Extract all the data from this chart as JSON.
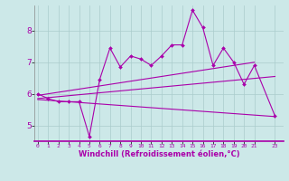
{
  "xlabel": "Windchill (Refroidissement éolien,°C)",
  "background_color": "#cce8e8",
  "line_color": "#aa00aa",
  "x_ticks": [
    0,
    1,
    2,
    3,
    4,
    5,
    6,
    7,
    8,
    9,
    10,
    11,
    12,
    13,
    14,
    15,
    16,
    17,
    18,
    19,
    20,
    21,
    23
  ],
  "ylim": [
    4.5,
    8.8
  ],
  "yticks": [
    5,
    6,
    7,
    8
  ],
  "xlim": [
    -0.3,
    23.8
  ],
  "series": {
    "main": {
      "x": [
        0,
        1,
        2,
        3,
        4,
        5,
        6,
        7,
        8,
        9,
        10,
        11,
        12,
        13,
        14,
        15,
        16,
        17,
        18,
        19,
        20,
        21,
        23
      ],
      "y": [
        6.0,
        5.85,
        5.75,
        5.75,
        5.75,
        4.65,
        6.45,
        7.45,
        6.85,
        7.2,
        7.1,
        6.9,
        7.2,
        7.55,
        7.55,
        8.65,
        8.1,
        6.9,
        7.45,
        7.0,
        6.3,
        6.9,
        5.3
      ]
    },
    "upper_trend": {
      "x": [
        0,
        21
      ],
      "y": [
        5.95,
        7.0
      ]
    },
    "mid_trend": {
      "x": [
        0,
        23
      ],
      "y": [
        5.85,
        6.55
      ]
    },
    "lower_trend": {
      "x": [
        0,
        23
      ],
      "y": [
        5.82,
        5.28
      ]
    }
  }
}
